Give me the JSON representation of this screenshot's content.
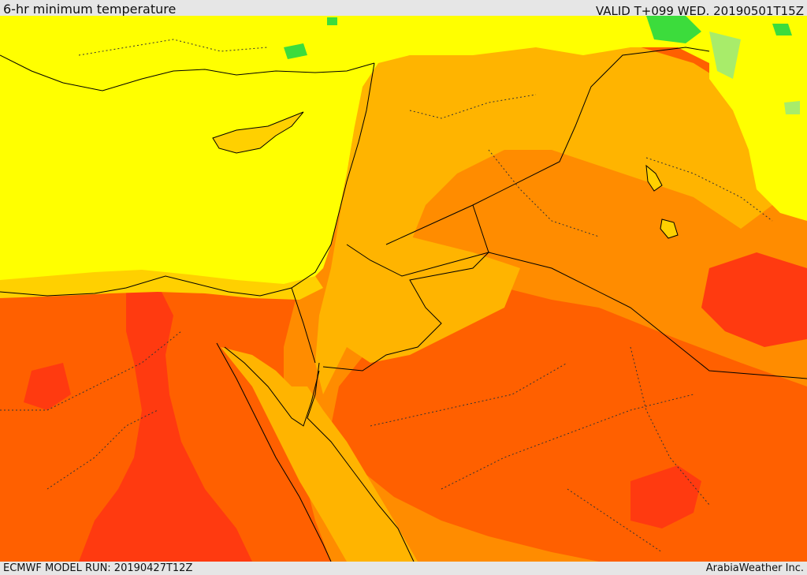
{
  "header": {
    "title": "6-hr minimum temperature",
    "valid_time": "VALID T+099 WED. 20190501T15Z"
  },
  "footer": {
    "model_run": "ECMWF MODEL RUN: 20190427T12Z",
    "credit": "ArabiaWeather Inc."
  },
  "map": {
    "field": "6-hr minimum temperature",
    "palette": {
      "green": "#3cdc3c",
      "light_green": "#a8ec6a",
      "yellow": "#ffff00",
      "light_orange": "#ffd000",
      "orange": "#ffb400",
      "dark_orange": "#ff8c00",
      "red_orange": "#ff6000",
      "red": "#ff3a10"
    },
    "lines": {
      "coastline": "#000000",
      "borders": "#000000",
      "provinces": "#444444"
    }
  }
}
